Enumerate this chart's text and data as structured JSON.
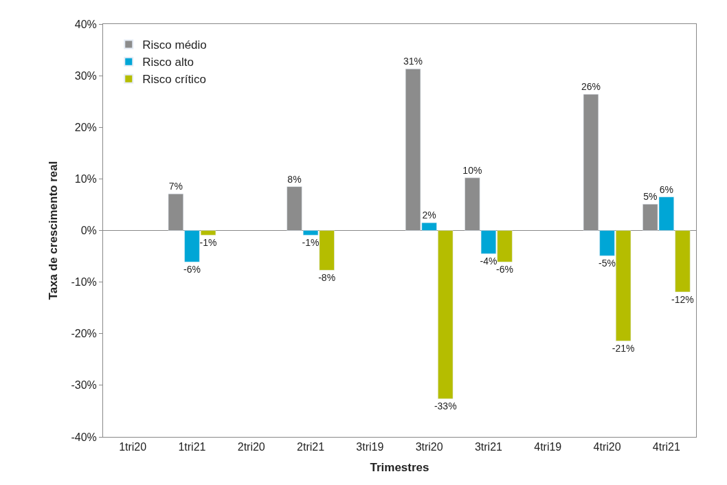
{
  "chart_data": {
    "type": "bar",
    "xlabel": "Trimestres",
    "ylabel": "Taxa de crescimento real",
    "categories": [
      "1tri20",
      "1tri21",
      "2tri20",
      "2tri21",
      "3tri19",
      "3tri20",
      "3tri21",
      "4tri19",
      "4tri20",
      "4tri21"
    ],
    "series": [
      {
        "name": "Risco médio",
        "color": "#8c8c8c",
        "values": [
          null,
          7.1,
          null,
          8.5,
          null,
          31.3,
          10.2,
          null,
          26.4,
          5.1
        ],
        "value_labels": [
          null,
          "7%",
          null,
          "8%",
          null,
          "31%",
          "10%",
          null,
          "26%",
          "5%"
        ]
      },
      {
        "name": "Risco alto",
        "color": "#00a6d6",
        "values": [
          null,
          -6.1,
          null,
          -0.9,
          null,
          1.5,
          -4.5,
          null,
          -4.9,
          6.5
        ],
        "value_labels": [
          null,
          "-6%",
          null,
          "-1%",
          null,
          "2%",
          "-4%",
          null,
          "-5%",
          "6%"
        ]
      },
      {
        "name": "Risco crítico",
        "color": "#b5bd00",
        "values": [
          null,
          -0.9,
          null,
          -7.7,
          null,
          -32.6,
          -6.1,
          null,
          -21.4,
          -11.9
        ],
        "value_labels": [
          null,
          "-1%",
          null,
          "-8%",
          null,
          "-33%",
          "-6%",
          null,
          "-21%",
          "-12%"
        ]
      }
    ],
    "ylim": [
      -40,
      40
    ],
    "yticks": [
      {
        "value": -40,
        "label": "-40%"
      },
      {
        "value": -30,
        "label": "-30%"
      },
      {
        "value": -20,
        "label": "-20%"
      },
      {
        "value": -10,
        "label": "-10%"
      },
      {
        "value": 0,
        "label": "0%"
      },
      {
        "value": 10,
        "label": "10%"
      },
      {
        "value": 20,
        "label": "20%"
      },
      {
        "value": 30,
        "label": "30%"
      },
      {
        "value": 40,
        "label": "40%"
      }
    ],
    "ref_lines": [
      {
        "axis": "y",
        "value": 0,
        "color": "#888888"
      }
    ],
    "legend": "top left"
  }
}
